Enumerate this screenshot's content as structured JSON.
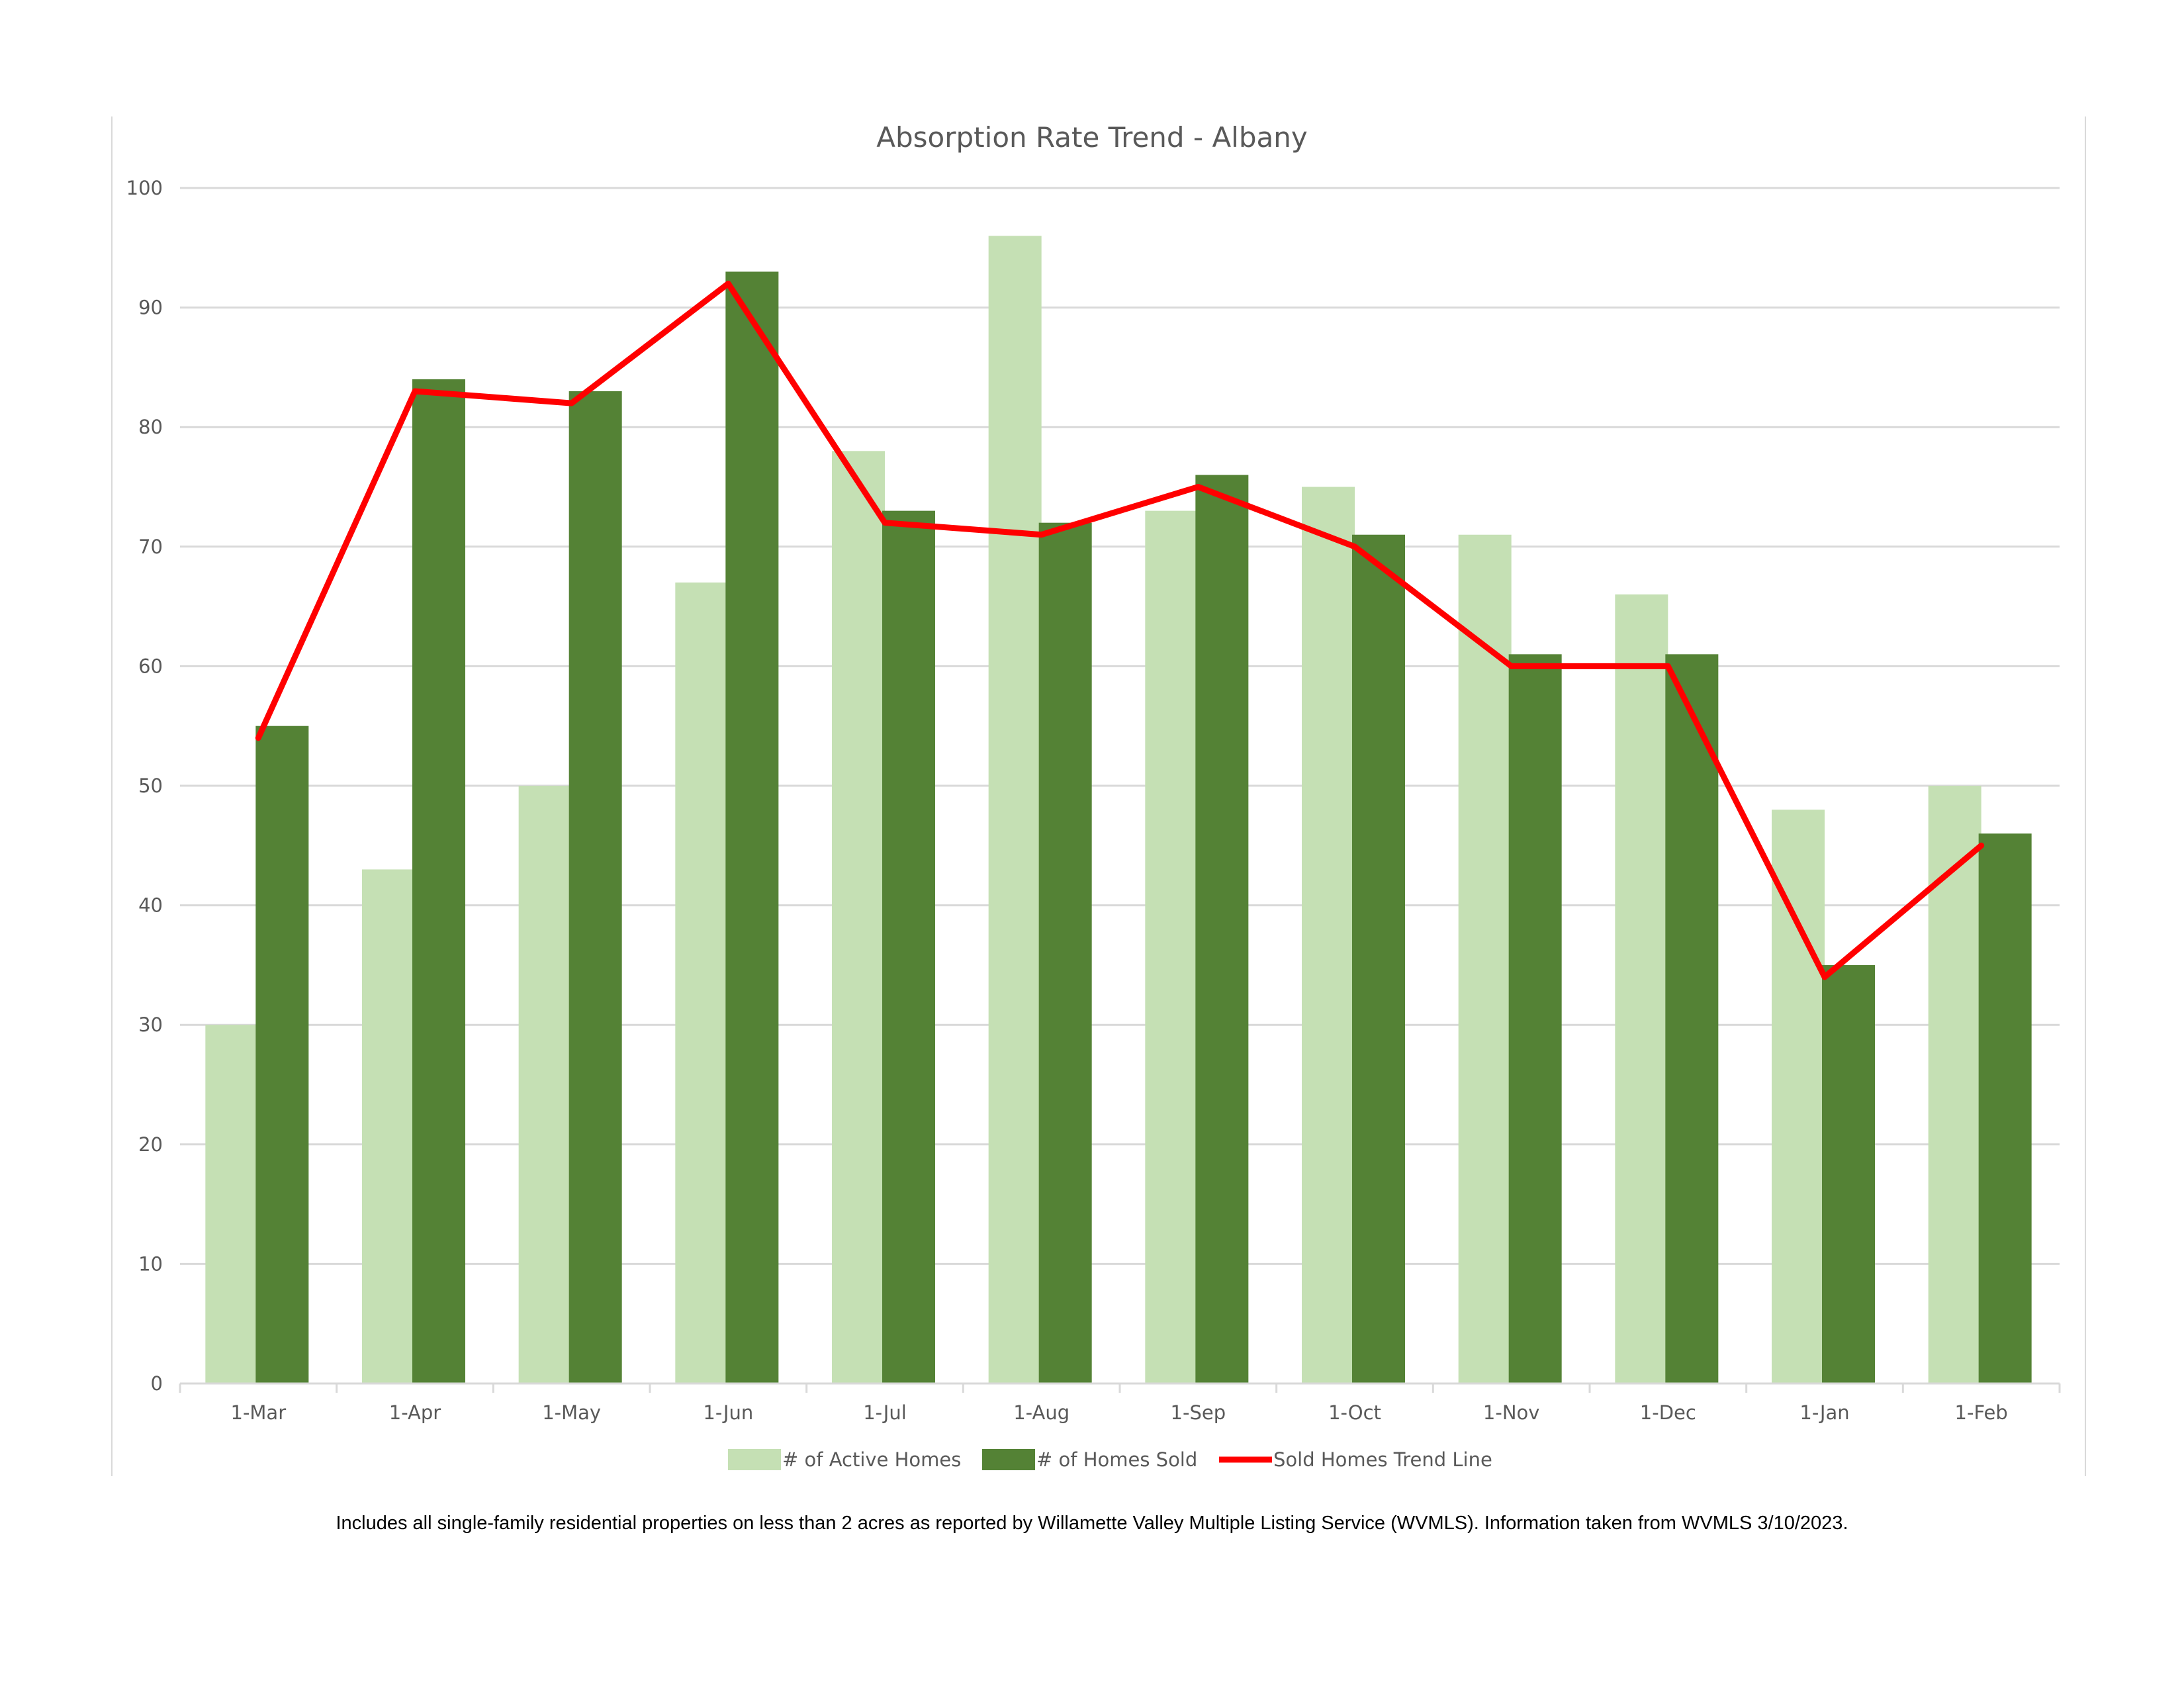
{
  "chart_data": {
    "type": "bar",
    "title": "Absorption Rate Trend - Albany",
    "xlabel": "",
    "ylabel": "",
    "ylim": [
      0,
      100
    ],
    "yticks": [
      0,
      10,
      20,
      30,
      40,
      50,
      60,
      70,
      80,
      90,
      100
    ],
    "categories": [
      "1-Mar",
      "1-Apr",
      "1-May",
      "1-Jun",
      "1-Jul",
      "1-Aug",
      "1-Sep",
      "1-Oct",
      "1-Nov",
      "1-Dec",
      "1-Jan",
      "1-Feb"
    ],
    "series": [
      {
        "name": "# of Active Homes",
        "type": "bar",
        "color": "#c5e0b4",
        "values": [
          30,
          43,
          50,
          67,
          78,
          96,
          73,
          75,
          71,
          66,
          48,
          50
        ]
      },
      {
        "name": "# of Homes Sold",
        "type": "bar",
        "color": "#548235",
        "values": [
          55,
          84,
          83,
          93,
          73,
          72,
          76,
          71,
          61,
          61,
          35,
          46
        ]
      },
      {
        "name": "Sold Homes Trend Line",
        "type": "line",
        "color": "#ff0000",
        "values": [
          54,
          83,
          82,
          92,
          72,
          71,
          75,
          70,
          60,
          60,
          34,
          45
        ]
      }
    ],
    "grid": true,
    "legend_position": "bottom"
  },
  "footnote": "Includes all single-family residential properties on less than 2 acres as reported by Willamette Valley Multiple Listing Service (WVMLS). Information taken from WVMLS 3/10/2023."
}
